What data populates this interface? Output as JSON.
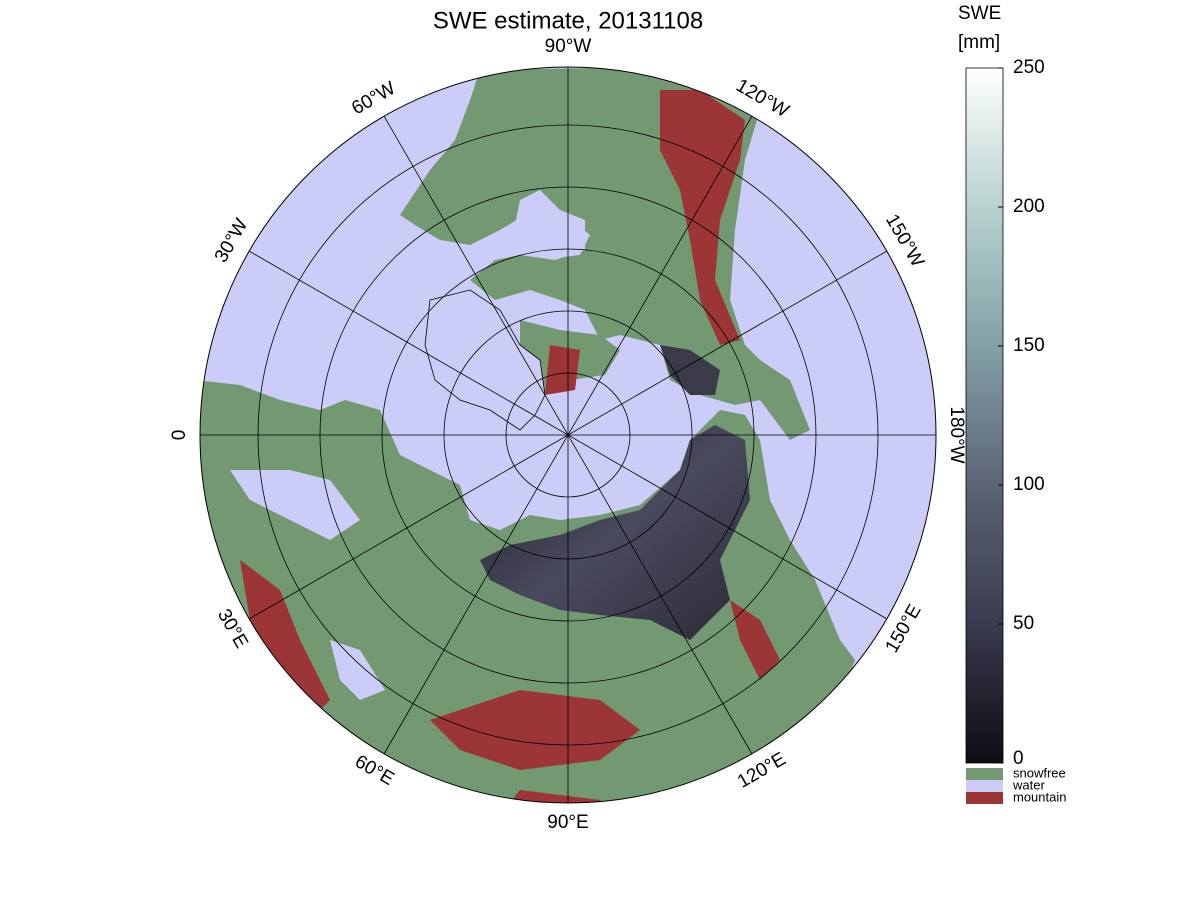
{
  "chart_data": {
    "type": "map",
    "title": "SWE estimate, 20131108",
    "meridian_labels": [
      "90°W",
      "120°W",
      "150°W",
      "180°W",
      "150°E",
      "120°E",
      "90°E",
      "60°E",
      "30°E",
      "0",
      "30°W",
      "60°W"
    ],
    "colorbar": {
      "label": [
        "SWE",
        "[mm]"
      ],
      "lim": [
        0,
        250
      ],
      "ticks": [
        0,
        50,
        100,
        150,
        200,
        250
      ],
      "colors": [
        "#0d0d12",
        "#3a3a50",
        "#5c6478",
        "#84a0a6",
        "#b8d2cf",
        "#ffffff"
      ]
    },
    "legend": [
      {
        "name": "snowfree",
        "color": "#739972"
      },
      {
        "name": "water",
        "color": "#ccccf9"
      },
      {
        "name": "mountain",
        "color": "#9c3535"
      }
    ]
  }
}
